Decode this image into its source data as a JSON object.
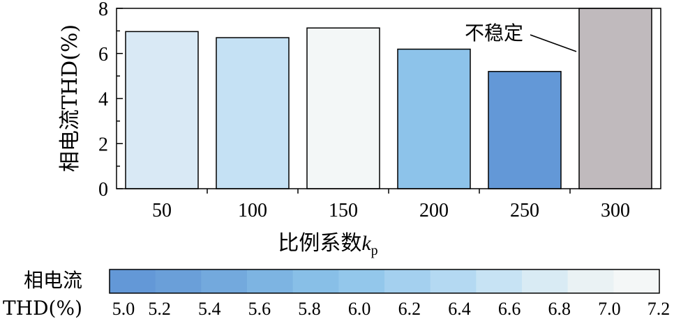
{
  "chart_data": {
    "type": "bar",
    "categories": [
      "50",
      "100",
      "150",
      "200",
      "250",
      "300"
    ],
    "values": [
      6.97,
      6.7,
      7.13,
      6.19,
      5.2,
      8
    ],
    "value_colors": [
      "#d9e9f5",
      "#c5e1f4",
      "#f3f7f7",
      "#8dc3ea",
      "#6398d7",
      "#c0babd"
    ],
    "ylabel": "相电流THD(%)",
    "xlabel_main": "比例系数",
    "xlabel_var": "k",
    "xlabel_sub": "p",
    "ylim": [
      0,
      8
    ],
    "yticks": [
      "0",
      "2",
      "4",
      "6",
      "8"
    ],
    "annotation": {
      "text": "不稳定",
      "category": "300"
    },
    "colorbar": {
      "title_line1": "相电流",
      "title_line2": "THD(%)",
      "range": [
        5.0,
        7.2
      ],
      "ticks": [
        "5.0",
        "5.2",
        "5.4",
        "5.6",
        "5.8",
        "6.0",
        "6.2",
        "6.4",
        "6.6",
        "6.8",
        "7.0",
        "7.2"
      ],
      "colors": [
        "#6398d7",
        "#6a9fd9",
        "#73a9dd",
        "#7db4e2",
        "#88bfe7",
        "#93c7eb",
        "#a4d0ef",
        "#b4d9f2",
        "#c7e3f4",
        "#d9ebf4",
        "#eaf2f4",
        "#f4f7f7"
      ]
    }
  }
}
